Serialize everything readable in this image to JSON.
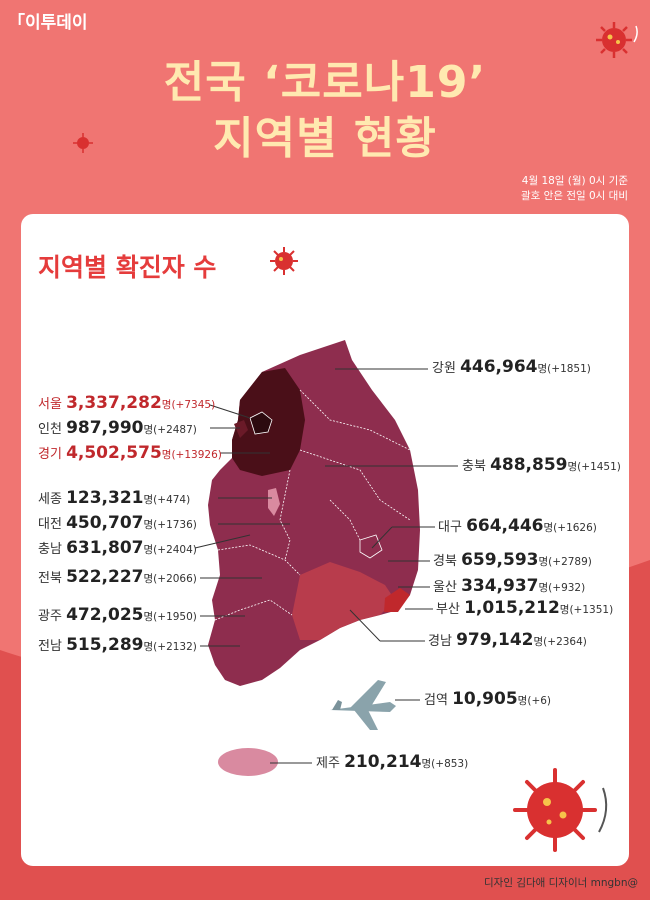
{
  "brand": {
    "logo": "「이투데이"
  },
  "header": {
    "title_line1": "전국 ‘코로나19’",
    "title_line2": "지역별 현황",
    "date_line1": "4월 18일 (월) 0시 기준",
    "date_line2": "괄호 안은 전일 0시 대비"
  },
  "section_title": "지역별 확진자 수",
  "credit": "디자인 김다애 디자이너 mngbn@",
  "colors": {
    "background": "#f07572",
    "title": "#ffe9b0",
    "accent_red": "#e53c3c",
    "region_dark": "#4a0f18",
    "region_mid": "#8e2d4e",
    "region_busan": "#c0282c",
    "region_gyeongnam": "#b83c4c",
    "region_light": "#d98aa0"
  },
  "icons": [
    "virus-icon",
    "airplane-icon"
  ],
  "chart_data": {
    "type": "table",
    "unit": "명",
    "columns": [
      "region",
      "cumulative_cases",
      "daily_change"
    ],
    "rows": [
      {
        "region": "강원",
        "value": "446,964",
        "change": "(+1851)"
      },
      {
        "region": "서울",
        "value": "3,337,282",
        "change": "(+7345)"
      },
      {
        "region": "인천",
        "value": "987,990",
        "change": "(+2487)"
      },
      {
        "region": "경기",
        "value": "4,502,575",
        "change": "(+13926)"
      },
      {
        "region": "충북",
        "value": "488,859",
        "change": "(+1451)"
      },
      {
        "region": "세종",
        "value": "123,321",
        "change": "(+474)"
      },
      {
        "region": "대전",
        "value": "450,707",
        "change": "(+1736)"
      },
      {
        "region": "대구",
        "value": "664,446",
        "change": "(+1626)"
      },
      {
        "region": "충남",
        "value": "631,807",
        "change": "(+2404)"
      },
      {
        "region": "경북",
        "value": "659,593",
        "change": "(+2789)"
      },
      {
        "region": "전북",
        "value": "522,227",
        "change": "(+2066)"
      },
      {
        "region": "울산",
        "value": "334,937",
        "change": "(+932)"
      },
      {
        "region": "부산",
        "value": "1,015,212",
        "change": "(+1351)"
      },
      {
        "region": "광주",
        "value": "472,025",
        "change": "(+1950)"
      },
      {
        "region": "경남",
        "value": "979,142",
        "change": "(+2364)"
      },
      {
        "region": "전남",
        "value": "515,289",
        "change": "(+2132)"
      },
      {
        "region": "검역",
        "value": "10,905",
        "change": "(+6)"
      },
      {
        "region": "제주",
        "value": "210,214",
        "change": "(+853)"
      }
    ]
  }
}
